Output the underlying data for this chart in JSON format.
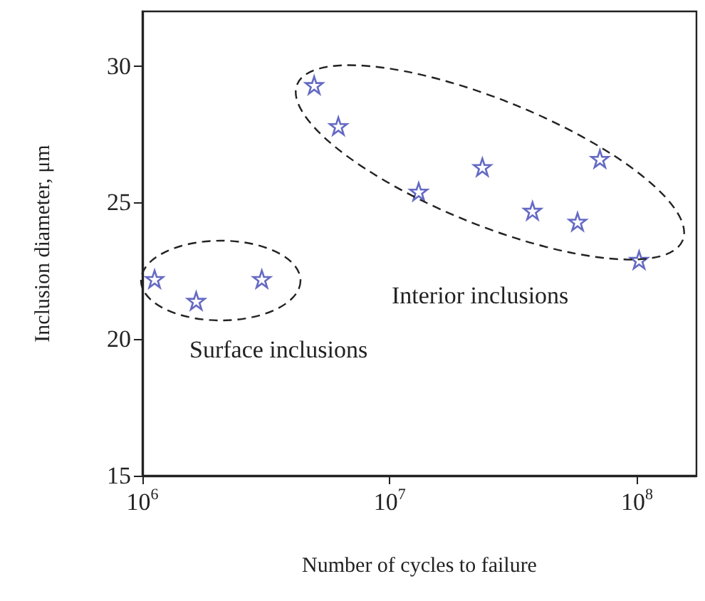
{
  "chart_data": {
    "type": "scatter",
    "xlabel": "Number of cycles to failure",
    "ylabel": "Inclusion diameter, μm",
    "log": "x",
    "marker": "star",
    "grid": false,
    "xlim": [
      1000000,
      174000000
    ],
    "xticks": [
      {
        "value": 1000000,
        "label": "10$^{6}$"
      },
      {
        "value": 10000000,
        "label": "10$^{7}$"
      },
      {
        "value": 100000000,
        "label": "10$^{8}$"
      }
    ],
    "ylim": [
      15,
      32
    ],
    "yticks": [
      15,
      20,
      25,
      30
    ],
    "annotations": [
      "Surface inclusions",
      "Interior inclusions"
    ],
    "series": [
      {
        "color": "#3f45b5",
        "x": [
          1120000,
          1650000,
          3040000,
          4950000,
          6200000,
          13100000,
          23700000,
          37800000,
          57500000,
          70800000,
          102000000
        ],
        "values": [
          22.2,
          21.4,
          22.2,
          29.3,
          27.8,
          25.4,
          26.3,
          24.7,
          24.3,
          26.6,
          22.9
        ]
      }
    ]
  }
}
